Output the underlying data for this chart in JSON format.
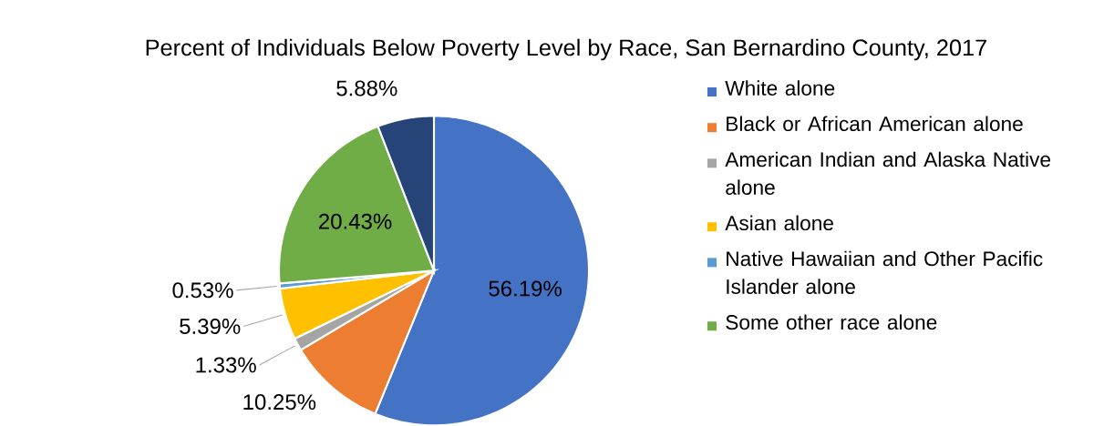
{
  "chart_data": {
    "type": "pie",
    "title": "Percent of Individuals Below Poverty Level by Race, San Bernardino County, 2017",
    "categories": [
      "White alone",
      "Black or African American alone",
      "American Indian and Alaska Native alone",
      "Asian alone",
      "Native Hawaiian and Other Pacific Islander alone",
      "Some other race alone",
      null
    ],
    "values": [
      56.19,
      10.25,
      1.33,
      5.39,
      0.53,
      20.43,
      5.88
    ],
    "value_labels": [
      "56.19%",
      "10.25%",
      "1.33%",
      "5.39%",
      "0.53%",
      "20.43%",
      "5.88%"
    ],
    "colors": [
      "#4472c4",
      "#ed7d31",
      "#a5a5a5",
      "#ffc000",
      "#5b9bd5",
      "#70ad47",
      "#264478"
    ],
    "legend": "right"
  }
}
